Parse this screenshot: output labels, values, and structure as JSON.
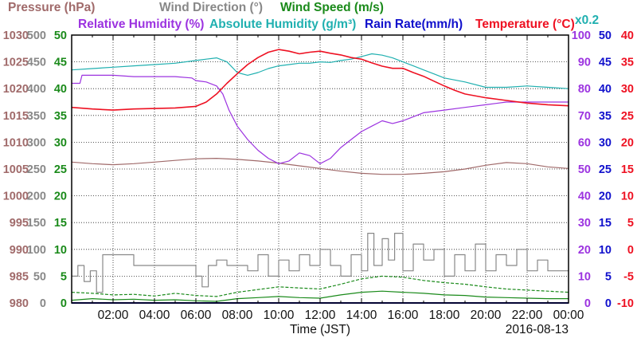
{
  "chart_data": {
    "type": "line",
    "date": "2016-08-13",
    "xlabel": "Time (JST)",
    "x_range": [
      "00:00",
      "24:00"
    ],
    "x_ticks": [
      "02:00",
      "04:00",
      "06:00",
      "08:00",
      "10:00",
      "12:00",
      "14:00",
      "16:00",
      "18:00",
      "20:00",
      "22:00",
      "00:00"
    ],
    "grid": true,
    "legend": [
      {
        "text": "Pressure (hPa)",
        "color": "#a06a6a"
      },
      {
        "text": "Wind Direction (°)",
        "color": "#888888"
      },
      {
        "text": "Wind Speed (m/s)",
        "color": "#1a8a1a"
      },
      {
        "text": "Relative Humidity (%)",
        "color": "#9c33e0"
      },
      {
        "text": "Absolute Humidity (g/m³)",
        "color": "#20b0b0"
      },
      {
        "text": "Rain Rate(mm/h)",
        "color": "#1010cc"
      },
      {
        "text": "Temperature (°C)",
        "color": "#ee1122"
      },
      {
        "text": "x0.2",
        "color": "#20b0b0"
      }
    ],
    "axes": [
      {
        "name": "Pressure (hPa)",
        "side": "left",
        "color": "#a06a6a",
        "range": [
          980,
          1030
        ],
        "ticks": [
          "980",
          "985",
          "990",
          "995",
          "1000",
          "1005",
          "1010",
          "1015",
          "1020",
          "1025",
          "1030"
        ]
      },
      {
        "name": "Wind Direction (°)",
        "side": "left",
        "color": "#888888",
        "range": [
          0,
          500
        ],
        "ticks": [
          "0",
          "50",
          "100",
          "150",
          "200",
          "250",
          "300",
          "350",
          "400",
          "450",
          "500"
        ]
      },
      {
        "name": "Wind Speed (m/s)",
        "side": "left",
        "color": "#1a8a1a",
        "range": [
          0,
          50
        ],
        "ticks": [
          "0",
          "5",
          "10",
          "15",
          "20",
          "25",
          "30",
          "35",
          "40",
          "45",
          "50"
        ]
      },
      {
        "name": "Relative Humidity (%)",
        "side": "right",
        "color": "#9c33e0",
        "range": [
          0,
          100
        ],
        "ticks": [
          "0",
          "10",
          "20",
          "30",
          "40",
          "50",
          "60",
          "70",
          "80",
          "90",
          "100"
        ]
      },
      {
        "name": "Rain Rate(mm/h)",
        "side": "right",
        "color": "#1010cc",
        "range": [
          0,
          50
        ],
        "ticks": [
          "0",
          "5",
          "10",
          "15",
          "20",
          "25",
          "30",
          "35",
          "40",
          "45",
          "50"
        ]
      },
      {
        "name": "Temperature (°C)",
        "side": "right",
        "color": "#ee1122",
        "range": [
          -10,
          40
        ],
        "ticks": [
          "-10",
          "-5",
          "0",
          "5",
          "10",
          "15",
          "20",
          "25",
          "30",
          "35",
          "40"
        ]
      }
    ],
    "series": [
      {
        "name": "Temperature (°C)",
        "axis": "Temperature (°C)",
        "color": "#ee1122",
        "style": "solid",
        "x": [
          0,
          1,
          2,
          3,
          4,
          5,
          6,
          6.5,
          7,
          7.5,
          8,
          8.5,
          9,
          9.5,
          10,
          10.5,
          11,
          11.5,
          12,
          12.5,
          13,
          13.5,
          14,
          14.5,
          15,
          15.5,
          16,
          16.5,
          17,
          17.5,
          18,
          18.5,
          19,
          20,
          21,
          22,
          23,
          24
        ],
        "y": [
          26.5,
          26.2,
          26.0,
          26.2,
          26.3,
          26.4,
          26.7,
          27.5,
          29.0,
          31.0,
          32.8,
          34.5,
          35.8,
          36.8,
          37.3,
          37.0,
          36.5,
          36.8,
          37.0,
          36.6,
          36.3,
          35.8,
          35.5,
          34.8,
          34.2,
          33.8,
          33.8,
          33.0,
          32.3,
          31.4,
          30.5,
          29.7,
          29.0,
          28.3,
          27.8,
          27.3,
          27.0,
          26.8
        ]
      },
      {
        "name": "Relative Humidity (%)",
        "axis": "Relative Humidity (%)",
        "color": "#9c33e0",
        "style": "solid",
        "x": [
          0,
          0.4,
          0.5,
          1,
          2,
          3,
          4,
          5,
          5.8,
          6,
          6.5,
          7,
          7.3,
          7.6,
          8,
          8.5,
          9,
          9.5,
          10,
          10.5,
          11,
          11.5,
          12,
          12.5,
          13,
          13.5,
          14,
          14.5,
          15,
          15.5,
          16,
          17,
          18,
          19,
          20,
          20.5,
          21,
          22,
          23,
          24
        ],
        "y": [
          82,
          82,
          85,
          85,
          85,
          84.5,
          84.5,
          84.5,
          84,
          83,
          82.5,
          81,
          78,
          72,
          66,
          61,
          57,
          54,
          52,
          53,
          56,
          55,
          52,
          54,
          58,
          61,
          64,
          66,
          68,
          67,
          68,
          71,
          72,
          73,
          74,
          74.5,
          75,
          75,
          75,
          75
        ]
      },
      {
        "name": "Absolute Humidity (g/m³)",
        "axis": "Relative Humidity (%)",
        "color": "#20b0b0",
        "style": "solid",
        "x": [
          0,
          1,
          2,
          3,
          4,
          5,
          6,
          6.5,
          7,
          7.5,
          8,
          8.5,
          9,
          9.5,
          10,
          10.5,
          11,
          11.5,
          12,
          12.5,
          13,
          13.5,
          14,
          14.5,
          15,
          15.5,
          16,
          16.5,
          17,
          17.5,
          18,
          19,
          20,
          21,
          22,
          23,
          24
        ],
        "y": [
          87,
          87.5,
          88,
          88.5,
          89,
          89.5,
          90.5,
          91,
          91.5,
          90,
          86,
          85,
          86,
          87.5,
          88.5,
          89,
          89.5,
          89.5,
          90,
          89.8,
          90.5,
          91,
          92,
          93,
          92.5,
          91.5,
          90,
          88.5,
          87,
          85.5,
          84,
          82.5,
          80.5,
          80.5,
          81,
          80.5,
          80
        ]
      },
      {
        "name": "Pressure (hPa)",
        "axis": "Pressure (hPa)",
        "color": "#a06a6a",
        "style": "solid",
        "x": [
          0,
          1,
          2,
          3,
          4,
          5,
          6,
          7,
          8,
          9,
          10,
          11,
          12,
          13,
          14,
          15,
          16,
          17,
          18,
          19,
          20,
          21,
          22,
          23,
          24
        ],
        "y": [
          1006.3,
          1006.0,
          1005.8,
          1006.0,
          1006.3,
          1006.6,
          1006.9,
          1007.0,
          1006.8,
          1006.5,
          1006.1,
          1005.6,
          1005.1,
          1004.6,
          1004.2,
          1004.0,
          1004.0,
          1004.2,
          1004.5,
          1005.0,
          1005.7,
          1006.2,
          1006.0,
          1005.4,
          1005.1
        ]
      },
      {
        "name": "Wind Direction (°)",
        "axis": "Wind Direction (°)",
        "color": "#888888",
        "style": "solid",
        "shape": "step",
        "x": [
          0,
          0.3,
          0.6,
          0.9,
          1.2,
          1.5,
          2.5,
          3,
          4,
          5,
          6,
          6.3,
          6.6,
          7,
          7.5,
          8,
          8.5,
          9,
          9.5,
          10,
          10.5,
          11,
          11.5,
          12,
          12.5,
          13,
          13.5,
          14,
          14.3,
          14.6,
          15,
          15.3,
          15.6,
          16,
          16.5,
          17,
          17.5,
          18,
          18.5,
          19,
          19.5,
          20,
          20.5,
          21,
          21.5,
          22,
          22.5,
          23,
          23.5,
          24
        ],
        "y": [
          50,
          70,
          40,
          60,
          20,
          90,
          90,
          70,
          70,
          70,
          50,
          30,
          70,
          80,
          70,
          70,
          60,
          90,
          50,
          80,
          60,
          90,
          70,
          100,
          70,
          50,
          90,
          60,
          130,
          70,
          120,
          80,
          130,
          60,
          110,
          80,
          100,
          50,
          90,
          60,
          110,
          60,
          90,
          70,
          100,
          60,
          80,
          60,
          60,
          60
        ]
      },
      {
        "name": "Wind Speed (m/s)",
        "axis": "Wind Speed (m/s)",
        "color": "#1a8a1a",
        "style": "solid",
        "x": [
          0,
          1,
          2,
          3,
          4,
          5,
          6,
          7,
          8,
          9,
          10,
          11,
          12,
          13,
          14,
          15,
          16,
          17,
          18,
          19,
          20,
          21,
          22,
          23,
          24
        ],
        "y": [
          0.5,
          0.8,
          0.6,
          0.7,
          0.5,
          0.6,
          0.4,
          0.3,
          0.8,
          1.0,
          1.2,
          1.0,
          0.9,
          1.5,
          2.0,
          2.2,
          2.0,
          1.8,
          1.5,
          1.4,
          1.1,
          1.0,
          0.9,
          0.8,
          0.8
        ]
      },
      {
        "name": "Wind Speed (m/s) max",
        "axis": "Wind Speed (m/s)",
        "color": "#1a8a1a",
        "style": "dashed",
        "x": [
          0,
          1,
          2,
          3,
          4,
          5,
          6,
          7,
          8,
          9,
          10,
          11,
          12,
          13,
          14,
          15,
          16,
          17,
          18,
          19,
          20,
          21,
          22,
          23,
          24
        ],
        "y": [
          2.0,
          1.8,
          1.5,
          1.6,
          1.3,
          1.8,
          1.4,
          1.2,
          2.0,
          2.5,
          3.0,
          2.8,
          2.6,
          3.5,
          4.5,
          5.0,
          4.8,
          4.2,
          3.8,
          3.5,
          3.0,
          2.6,
          2.4,
          2.2,
          2.0
        ]
      },
      {
        "name": "Rain Rate(mm/h)",
        "axis": "Rain Rate(mm/h)",
        "color": "#1010cc",
        "style": "solid",
        "x": [
          0,
          24
        ],
        "y": [
          0,
          0
        ]
      }
    ]
  }
}
